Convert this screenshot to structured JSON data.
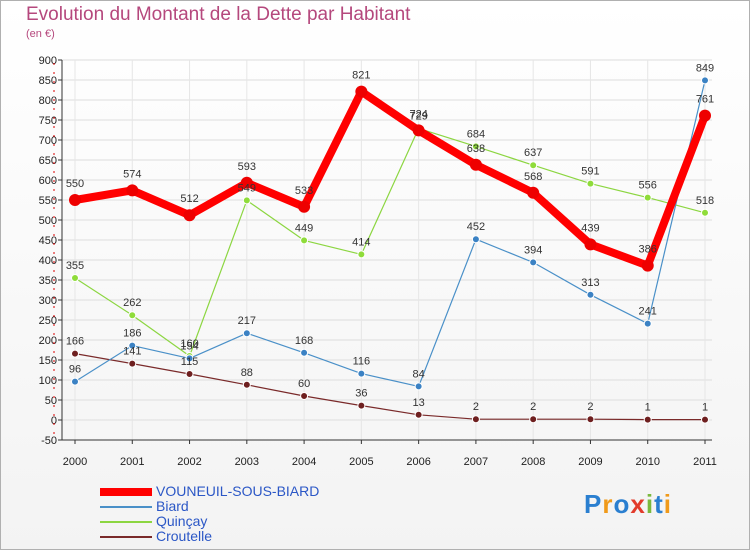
{
  "title": "Evolution du Montant de la Dette par Habitant",
  "subtitle": "(en €)",
  "logo": "Proxiti",
  "chart_data": {
    "type": "line",
    "title": "Evolution du Montant de la Dette par Habitant",
    "ylabel": "(en €)",
    "xlabel": "",
    "x": [
      "2000",
      "2001",
      "2002",
      "2003",
      "2004",
      "2005",
      "2006",
      "2007",
      "2008",
      "2009",
      "2010",
      "2011"
    ],
    "ylim": [
      -50,
      900
    ],
    "yticks": [
      -50,
      0,
      50,
      100,
      150,
      200,
      250,
      300,
      350,
      400,
      450,
      500,
      550,
      600,
      650,
      700,
      750,
      800,
      850,
      900
    ],
    "grid": true,
    "legend": "bottom-left",
    "series": [
      {
        "name": "VOUNEUIL-SOUS-BIARD",
        "color": "#ff0000",
        "values": [
          550,
          574,
          512,
          593,
          533,
          821,
          724,
          638,
          568,
          439,
          386,
          761
        ]
      },
      {
        "name": "Biard",
        "color": "#4a90c8",
        "values": [
          96,
          186,
          154,
          217,
          168,
          116,
          84,
          452,
          394,
          313,
          241,
          849
        ]
      },
      {
        "name": "Quinçay",
        "color": "#8cd641",
        "values": [
          355,
          262,
          160,
          549,
          449,
          414,
          729,
          684,
          637,
          591,
          556,
          518
        ]
      },
      {
        "name": "Croutelle",
        "color": "#7a2a2a",
        "values": [
          166,
          141,
          115,
          88,
          60,
          36,
          13,
          2,
          2,
          2,
          1,
          1
        ]
      }
    ]
  }
}
